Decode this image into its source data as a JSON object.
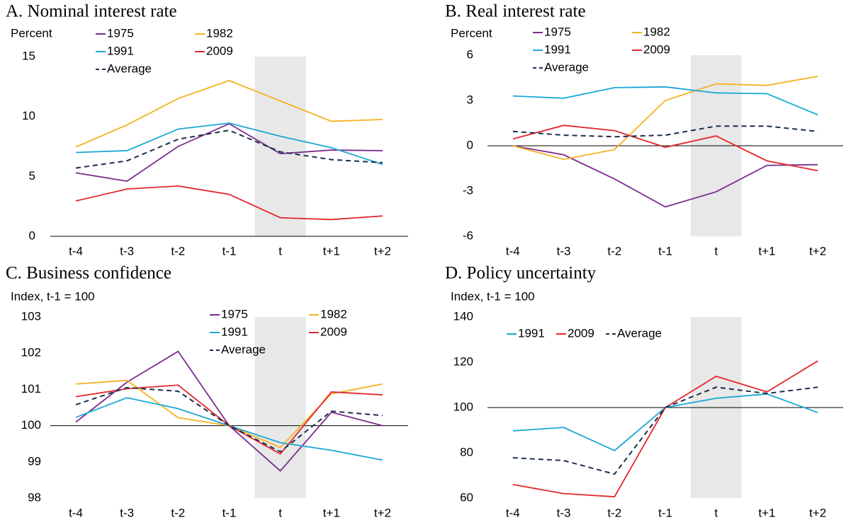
{
  "chart_data": [
    {
      "type": "line",
      "title": "A. Nominal interest rate",
      "ylabel": "Percent",
      "categories": [
        "t-4",
        "t-3",
        "t-2",
        "t-1",
        "t",
        "t+1",
        "t+2"
      ],
      "highlight_category": "t",
      "hline": 0,
      "ylim": [
        0,
        15
      ],
      "yticks": [
        0,
        5,
        10,
        15
      ],
      "legend": {
        "position": "upper left",
        "columns": 2
      },
      "series": [
        {
          "name": "1975",
          "color": "#7b2d8e",
          "values": [
            5.3,
            4.6,
            7.5,
            9.4,
            6.9,
            7.2,
            7.15
          ]
        },
        {
          "name": "1982",
          "color": "#f5b21f",
          "values": [
            7.45,
            9.3,
            11.5,
            13.0,
            11.3,
            9.6,
            9.75
          ]
        },
        {
          "name": "1991",
          "color": "#1aa7d6",
          "values": [
            7.0,
            7.15,
            8.95,
            9.45,
            8.35,
            7.4,
            6.0
          ]
        },
        {
          "name": "2009",
          "color": "#e3262d",
          "values": [
            2.95,
            3.95,
            4.2,
            3.5,
            1.55,
            1.4,
            1.7
          ]
        },
        {
          "name": "Average",
          "color": "#1c2e4a",
          "dash": true,
          "values": [
            5.7,
            6.3,
            8.1,
            8.85,
            7.05,
            6.4,
            6.15
          ]
        }
      ]
    },
    {
      "type": "line",
      "title": "B. Real interest rate",
      "ylabel": "Percent",
      "categories": [
        "t-4",
        "t-3",
        "t-2",
        "t-1",
        "t",
        "t+1",
        "t+2"
      ],
      "highlight_category": "t",
      "hline": 0,
      "ylim": [
        -6,
        6
      ],
      "yticks": [
        -6,
        -3,
        0,
        3,
        6
      ],
      "legend": {
        "position": "upper left",
        "columns": 2
      },
      "series": [
        {
          "name": "1975",
          "color": "#7b2d8e",
          "values": [
            0,
            -0.6,
            -2.2,
            -4.05,
            -3.05,
            -1.3,
            -1.25
          ]
        },
        {
          "name": "1982",
          "color": "#f5b21f",
          "values": [
            0,
            -0.9,
            -0.25,
            3.0,
            4.1,
            4.0,
            4.6
          ]
        },
        {
          "name": "1991",
          "color": "#1aa7d6",
          "values": [
            3.3,
            3.15,
            3.85,
            3.9,
            3.5,
            3.45,
            2.05
          ]
        },
        {
          "name": "2009",
          "color": "#e3262d",
          "values": [
            0.45,
            1.35,
            1.0,
            -0.1,
            0.65,
            -1.0,
            -1.65
          ]
        },
        {
          "name": "Average",
          "color": "#1c2e4a",
          "dash": true,
          "values": [
            0.95,
            0.7,
            0.6,
            0.7,
            1.3,
            1.3,
            0.95
          ]
        }
      ]
    },
    {
      "type": "line",
      "title": "C. Business confidence",
      "ylabel": "Index, t-1 = 100",
      "categories": [
        "t-4",
        "t-3",
        "t-2",
        "t-1",
        "t",
        "t+1",
        "t+2"
      ],
      "highlight_category": "t",
      "hline": 100,
      "ylim": [
        98,
        103
      ],
      "yticks": [
        98,
        99,
        100,
        101,
        102,
        103
      ],
      "legend": {
        "position": "upper center",
        "columns": 2
      },
      "series": [
        {
          "name": "1975",
          "color": "#7b2d8e",
          "values": [
            100.1,
            101.2,
            102.05,
            100,
            98.75,
            100.37,
            100
          ]
        },
        {
          "name": "1982",
          "color": "#f5b21f",
          "values": [
            101.15,
            101.25,
            100.22,
            100,
            99.4,
            100.88,
            101.15
          ]
        },
        {
          "name": "1991",
          "color": "#1aa7d6",
          "values": [
            100.23,
            100.77,
            100.47,
            100,
            99.53,
            99.32,
            99.05
          ]
        },
        {
          "name": "2009",
          "color": "#e3262d",
          "values": [
            100.8,
            101.02,
            101.12,
            100,
            99.22,
            100.93,
            100.85
          ]
        },
        {
          "name": "Average",
          "color": "#1c2e4a",
          "dash": true,
          "values": [
            100.58,
            101.05,
            100.95,
            100,
            99.28,
            100.4,
            100.28
          ]
        }
      ]
    },
    {
      "type": "line",
      "title": "D. Policy uncertainty",
      "ylabel": "Index, t-1 = 100",
      "categories": [
        "t-4",
        "t-3",
        "t-2",
        "t-1",
        "t",
        "t+1",
        "t+2"
      ],
      "highlight_category": "t",
      "hline": 100,
      "ylim": [
        60,
        140
      ],
      "yticks": [
        60,
        80,
        100,
        120,
        140
      ],
      "legend": {
        "position": "upper left",
        "columns": 3
      },
      "series": [
        {
          "name": "1991",
          "color": "#1aa7d6",
          "values": [
            89.7,
            91.2,
            81,
            100,
            104.1,
            106,
            97.8
          ]
        },
        {
          "name": "2009",
          "color": "#e3262d",
          "values": [
            66,
            62,
            60.6,
            100,
            113.8,
            106.9,
            120.6
          ]
        },
        {
          "name": "Average",
          "color": "#1c2e4a",
          "dash": true,
          "values": [
            77.8,
            76.6,
            70.6,
            100,
            109,
            106.2,
            109
          ]
        }
      ]
    }
  ]
}
